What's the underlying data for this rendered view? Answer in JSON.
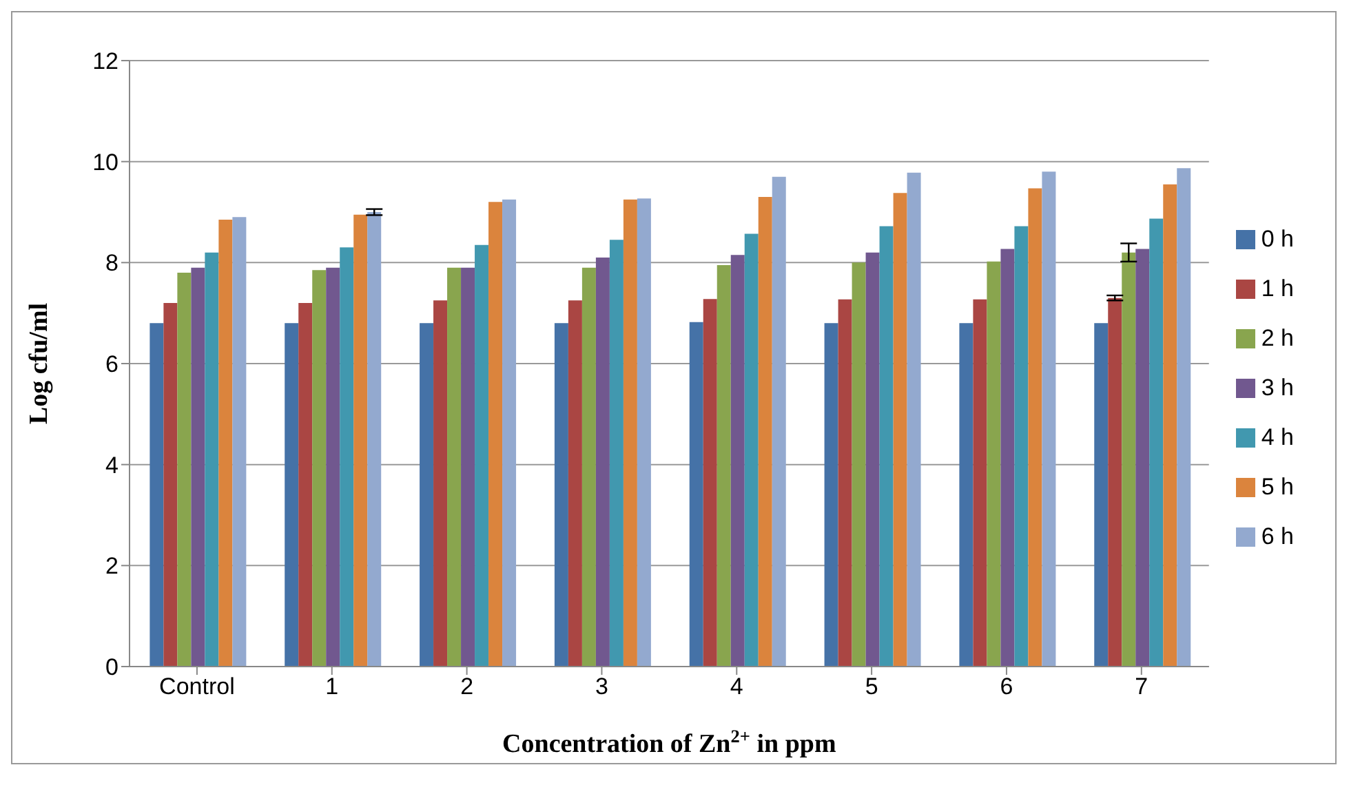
{
  "chart_data": {
    "type": "bar",
    "xlabel": "Concentration of Zn$^{2+}$ in ppm",
    "ylabel": "Log cfu/ml",
    "categories": [
      "Control",
      "1",
      "2",
      "3",
      "4",
      "5",
      "6",
      "7"
    ],
    "series": [
      {
        "name": "0 h",
        "color": "#4572a7",
        "values": [
          6.8,
          6.8,
          6.8,
          6.8,
          6.82,
          6.8,
          6.8,
          6.8
        ]
      },
      {
        "name": "1 h",
        "color": "#aa4643",
        "values": [
          7.2,
          7.2,
          7.25,
          7.25,
          7.28,
          7.27,
          7.27,
          7.3
        ],
        "errors": [
          null,
          null,
          null,
          null,
          null,
          null,
          null,
          0.05
        ]
      },
      {
        "name": "2 h",
        "color": "#89a54e",
        "values": [
          7.8,
          7.85,
          7.9,
          7.9,
          7.95,
          8.0,
          8.02,
          8.2
        ],
        "errors": [
          null,
          null,
          null,
          null,
          null,
          null,
          null,
          0.18
        ]
      },
      {
        "name": "3 h",
        "color": "#71588f",
        "values": [
          7.9,
          7.9,
          7.9,
          8.1,
          8.15,
          8.2,
          8.27,
          8.27
        ]
      },
      {
        "name": "4 h",
        "color": "#4198af",
        "values": [
          8.2,
          8.3,
          8.35,
          8.45,
          8.57,
          8.72,
          8.72,
          8.87
        ]
      },
      {
        "name": "5 h",
        "color": "#db843d",
        "values": [
          8.85,
          8.95,
          9.2,
          9.25,
          9.3,
          9.38,
          9.47,
          9.55
        ]
      },
      {
        "name": "6 h",
        "color": "#93a9cf",
        "values": [
          8.9,
          9.0,
          9.25,
          9.27,
          9.7,
          9.78,
          9.8,
          9.87
        ],
        "errors": [
          null,
          0.06,
          null,
          null,
          null,
          null,
          null,
          null
        ]
      }
    ],
    "ylim": [
      0,
      12
    ],
    "yticks": [
      0,
      2,
      4,
      6,
      8,
      10,
      12
    ],
    "grid": "y",
    "legend": "right"
  }
}
